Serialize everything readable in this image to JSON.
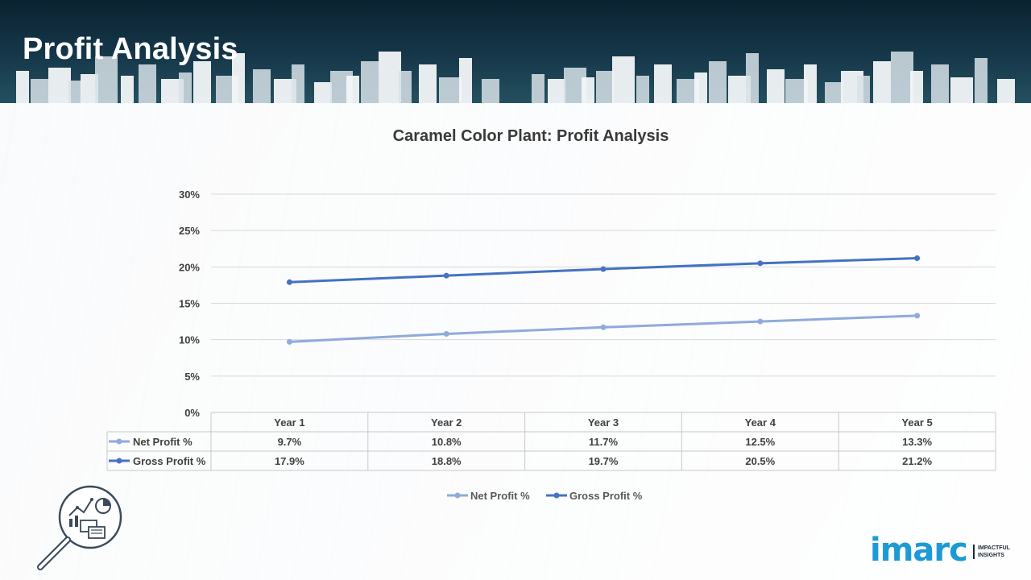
{
  "page": {
    "title": "Profit Analysis"
  },
  "chart_data": {
    "type": "line",
    "title": "Caramel Color Plant: Profit Analysis",
    "categories": [
      "Year 1",
      "Year 2",
      "Year 3",
      "Year 4",
      "Year 5"
    ],
    "series": [
      {
        "name": "Net Profit %",
        "values": [
          9.7,
          10.8,
          11.7,
          12.5,
          13.3
        ],
        "labels": [
          "9.7%",
          "10.8%",
          "11.7%",
          "12.5%",
          "13.3%"
        ],
        "color": "#8faadc"
      },
      {
        "name": "Gross Profit %",
        "values": [
          17.9,
          18.8,
          19.7,
          20.5,
          21.2
        ],
        "labels": [
          "17.9%",
          "18.8%",
          "19.7%",
          "20.5%",
          "21.2%"
        ],
        "color": "#4472c4"
      }
    ],
    "yticks": [
      "0%",
      "5%",
      "10%",
      "15%",
      "20%",
      "25%",
      "30%"
    ],
    "ylim": [
      0,
      30
    ],
    "grid": true,
    "data_table": true,
    "legend_placement": "bottom"
  },
  "branding": {
    "logo_text": "imarc",
    "tagline_line1": "IMPACTFUL",
    "tagline_line2": "INSIGHTS",
    "accent_color": "#1b9ad6"
  },
  "icons": {
    "analysis": "magnifier-chart-icon"
  }
}
